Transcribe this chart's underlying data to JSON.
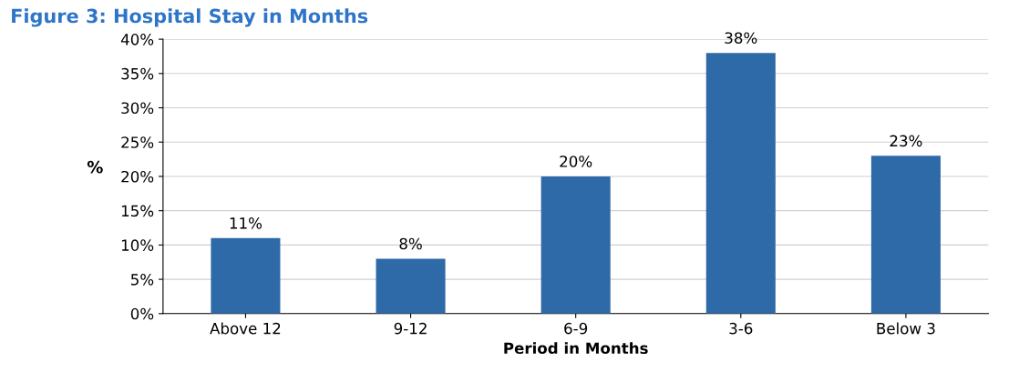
{
  "chart_data": {
    "type": "bar",
    "title": "Figure 3: Hospital Stay in Months",
    "xlabel": "Period in Months",
    "ylabel": "%",
    "categories": [
      "Above 12",
      "9-12",
      "6-9",
      "3-6",
      "Below 3"
    ],
    "values": [
      11,
      8,
      20,
      38,
      23
    ],
    "color": "#2e6aa8",
    "value_labels": [
      "11%",
      "8%",
      "20%",
      "38%",
      "23%"
    ],
    "ylim": [
      0,
      40
    ],
    "yticks": [
      {
        "value": 0,
        "label": "0%"
      },
      {
        "value": 5,
        "label": "5%"
      },
      {
        "value": 10,
        "label": "10%"
      },
      {
        "value": 15,
        "label": "15%"
      },
      {
        "value": 20,
        "label": "20%"
      },
      {
        "value": 25,
        "label": "25%"
      },
      {
        "value": 30,
        "label": "30%"
      },
      {
        "value": 35,
        "label": "35%"
      },
      {
        "value": 40,
        "label": "40%"
      }
    ],
    "grid": "y"
  }
}
